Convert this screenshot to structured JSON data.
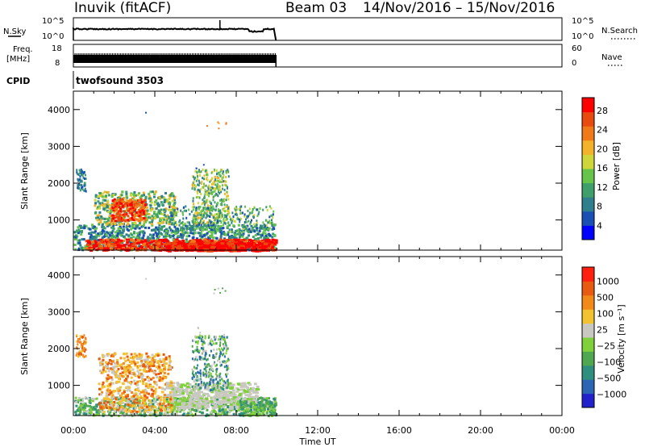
{
  "header": {
    "station": "Inuvik (fitACF)",
    "beam": "Beam 03",
    "dates": "14/Nov/2016 – 15/Nov/2016"
  },
  "nsky_panel": {
    "left_label": "N.Sky",
    "right_label": "N.Search",
    "left_ticks": [
      "10^5",
      "10^0"
    ],
    "right_ticks": [
      "10^5",
      "10^0"
    ],
    "right_legend_line": "dotted"
  },
  "freq_panel": {
    "left_label_1": "Freq.",
    "left_label_2": "[MHz]",
    "right_label": "Nave",
    "left_ticks": [
      "18",
      "8"
    ],
    "right_ticks": [
      "60",
      "0"
    ],
    "right_legend_line": "dotted"
  },
  "cpid_panel": {
    "label": "CPID",
    "value": "twofsound 3503"
  },
  "chart_data": [
    {
      "type": "heatmap",
      "name": "power-panel",
      "x_range_hours": [
        0,
        24
      ],
      "y_range_km": [
        180,
        4500
      ],
      "ylabel": "Slant Range [km]",
      "yticks": [
        "1000",
        "2000",
        "3000",
        "4000"
      ],
      "colorbar": {
        "label": "Power [dB]",
        "ticks": [
          "4",
          "8",
          "12",
          "16",
          "20",
          "24",
          "28"
        ],
        "colors": [
          "#0000ff",
          "#1a4fb3",
          "#2f7f8c",
          "#3f9f6a",
          "#66c44a",
          "#cfd63a",
          "#f2b22a",
          "#f07a1a",
          "#e84a10",
          "#ff0000"
        ]
      },
      "data_extent_hours": [
        0,
        10
      ]
    },
    {
      "type": "heatmap",
      "name": "velocity-panel",
      "x_range_hours": [
        0,
        24
      ],
      "y_range_km": [
        180,
        4500
      ],
      "ylabel": "Slant Range [km]",
      "yticks": [
        "1000",
        "2000",
        "3000",
        "4000"
      ],
      "colorbar": {
        "label": "Velocity [m s⁻¹]",
        "ticks": [
          "1000",
          "500",
          "100",
          "25",
          "−25",
          "−100",
          "−500",
          "−1000"
        ],
        "colors": [
          "#2222cc",
          "#2a66b3",
          "#2f8f7f",
          "#4fa84f",
          "#7fd03a",
          "#c8c8c0",
          "#f2c230",
          "#f28a1a",
          "#e85a10",
          "#ff2010"
        ]
      },
      "data_extent_hours": [
        0,
        10
      ]
    }
  ],
  "xaxis": {
    "ticks": [
      "00:00",
      "04:00",
      "08:00",
      "12:00",
      "16:00",
      "20:00",
      "00:00"
    ],
    "label": "Time UT"
  }
}
